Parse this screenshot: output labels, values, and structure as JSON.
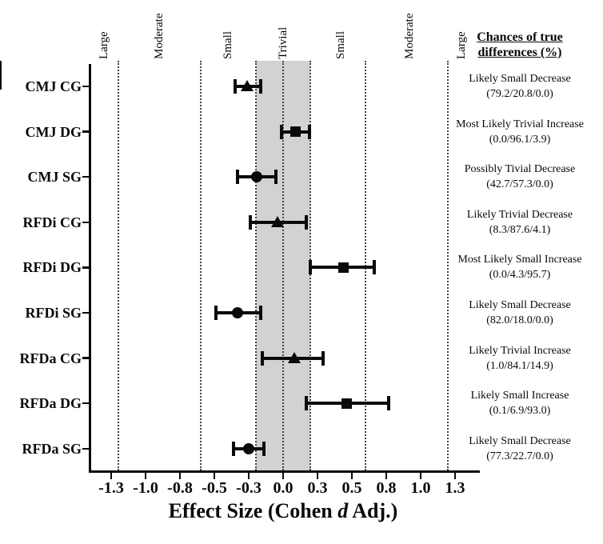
{
  "figure": {
    "xlabel_prefix": "Effect Size (Cohen ",
    "xlabel_italic": "d",
    "xlabel_suffix": " Adj.)",
    "right_header_line1": "Chances of true",
    "right_header_line2": "differences (%)"
  },
  "colors": {
    "ink": "#0a0a0a",
    "trivial_band": "#d2d2d2",
    "dotted_line": "#454545",
    "background": "#ffffff"
  },
  "chart_data": {
    "type": "scatter",
    "subtype": "horizontal-forest-plot-with-error-bars",
    "title": "",
    "xlabel": "Effect Size (Cohen d Adj.)",
    "ylabel": "",
    "x_domain": [
      -1.4,
      1.4
    ],
    "grid": "vertical dotted threshold lines only",
    "trivial_band": [
      -0.2,
      0.2
    ],
    "threshold_lines": [
      -1.2,
      -0.6,
      -0.2,
      0.0,
      0.2,
      0.6,
      1.2
    ],
    "zone_labels": [
      {
        "label": "Large",
        "center": -1.3
      },
      {
        "label": "Moderate",
        "center": -0.9
      },
      {
        "label": "Small",
        "center": -0.4
      },
      {
        "label": "Trivial",
        "center": 0.0
      },
      {
        "label": "Small",
        "center": 0.42
      },
      {
        "label": "Moderate",
        "center": 0.92
      },
      {
        "label": "Large",
        "center": 1.3
      }
    ],
    "x_ticks": [
      {
        "v": -1.25,
        "label": "-1.3"
      },
      {
        "v": -1.0,
        "label": "-1.0"
      },
      {
        "v": -0.75,
        "label": "-0.8"
      },
      {
        "v": -0.5,
        "label": "-0.5"
      },
      {
        "v": -0.25,
        "label": "-0.3"
      },
      {
        "v": 0.0,
        "label": "0.0"
      },
      {
        "v": 0.25,
        "label": "0.3"
      },
      {
        "v": 0.5,
        "label": "0.5"
      },
      {
        "v": 0.75,
        "label": "0.8"
      },
      {
        "v": 1.0,
        "label": "1.0"
      },
      {
        "v": 1.25,
        "label": "1.3"
      }
    ],
    "rows": [
      {
        "label": "CMJ CG",
        "marker": "triangle",
        "mean": -0.26,
        "ci_low": -0.35,
        "ci_high": -0.16,
        "chance": "Likely Small Decrease",
        "pct": "(79.2/20.8/0.0)"
      },
      {
        "label": "CMJ DG",
        "marker": "square",
        "mean": 0.09,
        "ci_low": -0.01,
        "ci_high": 0.19,
        "chance": "Most Likely Trivial Increase",
        "pct": "(0.0/96.1/3.9)"
      },
      {
        "label": "CMJ SG",
        "marker": "circle",
        "mean": -0.19,
        "ci_low": -0.33,
        "ci_high": -0.05,
        "chance": "Possibly Tivial Decrease",
        "pct": "(42.7/57.3/0.0)"
      },
      {
        "label": "RFDi CG",
        "marker": "triangle",
        "mean": -0.04,
        "ci_low": -0.24,
        "ci_high": 0.17,
        "chance": "Likely Trivial Decrease",
        "pct": "(8.3/87.6/4.1)"
      },
      {
        "label": "RFDi DG",
        "marker": "square",
        "mean": 0.44,
        "ci_low": 0.2,
        "ci_high": 0.66,
        "chance": "Most Likely Small Increase",
        "pct": "(0.0/4.3/95.7)"
      },
      {
        "label": "RFDi SG",
        "marker": "circle",
        "mean": -0.33,
        "ci_low": -0.49,
        "ci_high": -0.16,
        "chance": "Likely Small Decrease",
        "pct": "(82.0/18.0/0.0)"
      },
      {
        "label": "RFDa CG",
        "marker": "triangle",
        "mean": 0.08,
        "ci_low": -0.15,
        "ci_high": 0.29,
        "chance": "Likely Trivial Increase",
        "pct": "(1.0/84.1/14.9)"
      },
      {
        "label": "RFDa DG",
        "marker": "square",
        "mean": 0.46,
        "ci_low": 0.17,
        "ci_high": 0.77,
        "chance": "Likely Small Increase",
        "pct": "(0.1/6.9/93.0)"
      },
      {
        "label": "RFDa SG",
        "marker": "circle",
        "mean": -0.25,
        "ci_low": -0.36,
        "ci_high": -0.14,
        "chance": "Likely Small Decrease",
        "pct": "(77.3/22.7/0.0)"
      }
    ]
  }
}
